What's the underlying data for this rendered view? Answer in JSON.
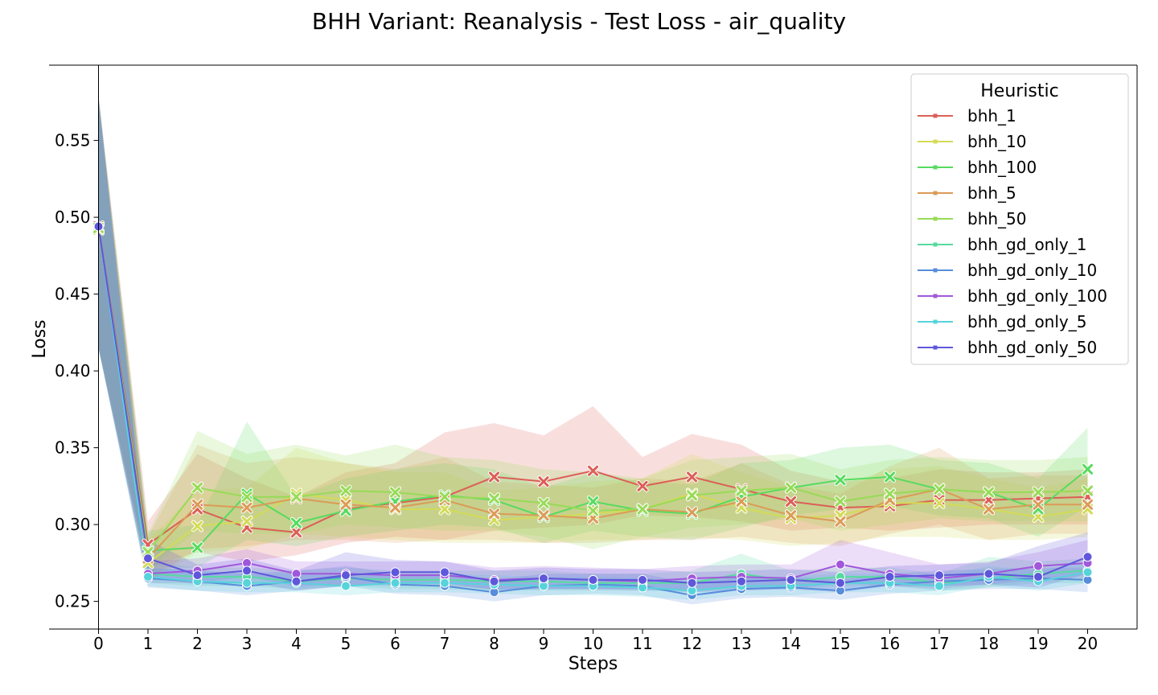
{
  "chart_data": {
    "type": "line",
    "title": "BHH Variant: Reanalysis - Test Loss - air_quality",
    "xlabel": "Steps",
    "ylabel": "Loss",
    "xlim": [
      -1,
      21
    ],
    "ylim": [
      0.232,
      0.599
    ],
    "x": [
      0,
      1,
      2,
      3,
      4,
      5,
      6,
      7,
      8,
      9,
      10,
      11,
      12,
      13,
      14,
      15,
      16,
      17,
      18,
      19,
      20
    ],
    "yticks": [
      "0.25",
      "0.30",
      "0.35",
      "0.40",
      "0.45",
      "0.50",
      "0.55"
    ],
    "ytick_values": [
      0.25,
      0.3,
      0.35,
      0.4,
      0.45,
      0.5,
      0.55
    ],
    "xticks": [
      "0",
      "1",
      "2",
      "3",
      "4",
      "5",
      "6",
      "7",
      "8",
      "9",
      "10",
      "11",
      "12",
      "13",
      "14",
      "15",
      "16",
      "17",
      "18",
      "19",
      "20"
    ],
    "legend_title": "Heuristic",
    "legend_position": "top-right",
    "grid": false,
    "series": [
      {
        "name": "bhh_1",
        "color": "#db5f57",
        "marker": "x",
        "values": [
          0.494,
          0.287,
          0.31,
          0.298,
          0.295,
          0.31,
          0.314,
          0.318,
          0.331,
          0.328,
          0.335,
          0.325,
          0.331,
          0.323,
          0.315,
          0.311,
          0.312,
          0.316,
          0.316,
          0.317,
          0.318
        ],
        "lower": [
          0.415,
          0.272,
          0.282,
          0.276,
          0.28,
          0.288,
          0.292,
          0.29,
          0.296,
          0.298,
          0.3,
          0.306,
          0.305,
          0.302,
          0.296,
          0.298,
          0.296,
          0.298,
          0.3,
          0.3,
          0.3
        ],
        "upper": [
          0.58,
          0.302,
          0.346,
          0.33,
          0.318,
          0.334,
          0.34,
          0.36,
          0.366,
          0.358,
          0.377,
          0.344,
          0.359,
          0.352,
          0.335,
          0.328,
          0.33,
          0.336,
          0.334,
          0.334,
          0.336
        ]
      },
      {
        "name": "bhh_10",
        "color": "#d3db57",
        "marker": "x",
        "values": [
          0.492,
          0.275,
          0.299,
          0.302,
          0.32,
          0.316,
          0.31,
          0.31,
          0.303,
          0.305,
          0.307,
          0.31,
          0.32,
          0.311,
          0.304,
          0.306,
          0.314,
          0.314,
          0.31,
          0.305,
          0.31
        ],
        "lower": [
          0.415,
          0.262,
          0.282,
          0.284,
          0.294,
          0.292,
          0.29,
          0.288,
          0.288,
          0.288,
          0.29,
          0.29,
          0.292,
          0.29,
          0.286,
          0.288,
          0.292,
          0.292,
          0.29,
          0.29,
          0.292
        ],
        "upper": [
          0.575,
          0.29,
          0.322,
          0.324,
          0.35,
          0.34,
          0.334,
          0.334,
          0.322,
          0.324,
          0.328,
          0.33,
          0.346,
          0.334,
          0.324,
          0.326,
          0.336,
          0.338,
          0.33,
          0.324,
          0.33
        ]
      },
      {
        "name": "bhh_100",
        "color": "#57db5f",
        "marker": "x",
        "values": [
          0.493,
          0.283,
          0.285,
          0.32,
          0.301,
          0.309,
          0.315,
          0.319,
          0.316,
          0.305,
          0.315,
          0.309,
          0.307,
          0.318,
          0.324,
          0.329,
          0.331,
          0.323,
          0.321,
          0.31,
          0.336
        ],
        "lower": [
          0.415,
          0.272,
          0.272,
          0.29,
          0.286,
          0.292,
          0.296,
          0.3,
          0.298,
          0.288,
          0.296,
          0.292,
          0.29,
          0.298,
          0.306,
          0.31,
          0.312,
          0.306,
          0.304,
          0.292,
          0.312
        ],
        "upper": [
          0.578,
          0.296,
          0.3,
          0.367,
          0.318,
          0.33,
          0.336,
          0.34,
          0.336,
          0.324,
          0.334,
          0.328,
          0.326,
          0.34,
          0.342,
          0.35,
          0.352,
          0.342,
          0.34,
          0.33,
          0.363
        ]
      },
      {
        "name": "bhh_5",
        "color": "#db9b57",
        "marker": "x",
        "values": [
          0.493,
          0.278,
          0.313,
          0.311,
          0.317,
          0.313,
          0.311,
          0.316,
          0.307,
          0.306,
          0.304,
          0.31,
          0.308,
          0.315,
          0.306,
          0.302,
          0.316,
          0.323,
          0.31,
          0.313,
          0.313
        ],
        "lower": [
          0.415,
          0.264,
          0.284,
          0.286,
          0.29,
          0.29,
          0.288,
          0.29,
          0.29,
          0.288,
          0.288,
          0.29,
          0.29,
          0.292,
          0.288,
          0.286,
          0.294,
          0.3,
          0.29,
          0.294,
          0.294
        ],
        "upper": [
          0.578,
          0.292,
          0.352,
          0.34,
          0.344,
          0.34,
          0.336,
          0.344,
          0.328,
          0.326,
          0.324,
          0.33,
          0.328,
          0.34,
          0.326,
          0.32,
          0.338,
          0.35,
          0.33,
          0.332,
          0.332
        ]
      },
      {
        "name": "bhh_50",
        "color": "#97db57",
        "marker": "x",
        "values": [
          0.493,
          0.282,
          0.324,
          0.318,
          0.318,
          0.322,
          0.321,
          0.318,
          0.317,
          0.314,
          0.309,
          0.31,
          0.319,
          0.322,
          0.324,
          0.315,
          0.32,
          0.323,
          0.321,
          0.321,
          0.322
        ],
        "lower": [
          0.415,
          0.27,
          0.296,
          0.294,
          0.294,
          0.3,
          0.298,
          0.296,
          0.296,
          0.292,
          0.284,
          0.292,
          0.298,
          0.3,
          0.304,
          0.296,
          0.3,
          0.304,
          0.302,
          0.302,
          0.302
        ],
        "upper": [
          0.578,
          0.294,
          0.361,
          0.346,
          0.352,
          0.345,
          0.352,
          0.344,
          0.342,
          0.336,
          0.334,
          0.33,
          0.342,
          0.344,
          0.346,
          0.336,
          0.342,
          0.344,
          0.342,
          0.342,
          0.344
        ]
      },
      {
        "name": "bhh_gd_only_1",
        "color": "#57db9f",
        "marker": "o",
        "values": [
          0.494,
          0.268,
          0.266,
          0.266,
          0.263,
          0.265,
          0.264,
          0.264,
          0.263,
          0.263,
          0.262,
          0.262,
          0.262,
          0.268,
          0.263,
          0.266,
          0.266,
          0.262,
          0.265,
          0.268,
          0.27
        ],
        "lower": [
          0.415,
          0.262,
          0.26,
          0.26,
          0.258,
          0.26,
          0.258,
          0.258,
          0.257,
          0.257,
          0.257,
          0.257,
          0.256,
          0.258,
          0.258,
          0.26,
          0.26,
          0.257,
          0.259,
          0.262,
          0.262
        ],
        "upper": [
          0.578,
          0.276,
          0.272,
          0.272,
          0.27,
          0.272,
          0.27,
          0.27,
          0.27,
          0.27,
          0.268,
          0.268,
          0.27,
          0.281,
          0.27,
          0.272,
          0.272,
          0.268,
          0.279,
          0.276,
          0.278
        ]
      },
      {
        "name": "bhh_gd_only_10",
        "color": "#578ddb",
        "marker": "o",
        "values": [
          0.494,
          0.265,
          0.263,
          0.26,
          0.263,
          0.266,
          0.261,
          0.26,
          0.256,
          0.26,
          0.261,
          0.26,
          0.254,
          0.258,
          0.259,
          0.257,
          0.261,
          0.263,
          0.264,
          0.265,
          0.264
        ],
        "lower": [
          0.415,
          0.259,
          0.257,
          0.254,
          0.257,
          0.26,
          0.255,
          0.254,
          0.25,
          0.254,
          0.255,
          0.254,
          0.248,
          0.252,
          0.253,
          0.251,
          0.255,
          0.257,
          0.258,
          0.258,
          0.256
        ],
        "upper": [
          0.578,
          0.272,
          0.27,
          0.268,
          0.27,
          0.273,
          0.268,
          0.268,
          0.264,
          0.268,
          0.268,
          0.268,
          0.262,
          0.266,
          0.266,
          0.264,
          0.268,
          0.27,
          0.271,
          0.272,
          0.272
        ]
      },
      {
        "name": "bhh_gd_only_100",
        "color": "#a157db",
        "marker": "o",
        "values": [
          0.494,
          0.268,
          0.27,
          0.275,
          0.268,
          0.268,
          0.267,
          0.267,
          0.264,
          0.265,
          0.264,
          0.263,
          0.265,
          0.266,
          0.265,
          0.274,
          0.268,
          0.265,
          0.268,
          0.273,
          0.275
        ],
        "lower": [
          0.415,
          0.262,
          0.262,
          0.266,
          0.26,
          0.261,
          0.26,
          0.26,
          0.258,
          0.258,
          0.258,
          0.257,
          0.258,
          0.259,
          0.258,
          0.262,
          0.26,
          0.258,
          0.261,
          0.264,
          0.264
        ],
        "upper": [
          0.578,
          0.276,
          0.278,
          0.284,
          0.276,
          0.276,
          0.276,
          0.276,
          0.272,
          0.273,
          0.272,
          0.271,
          0.273,
          0.274,
          0.274,
          0.29,
          0.282,
          0.274,
          0.276,
          0.282,
          0.29
        ]
      },
      {
        "name": "bhh_gd_only_5",
        "color": "#57d3db",
        "marker": "o",
        "values": [
          0.494,
          0.266,
          0.263,
          0.262,
          0.262,
          0.26,
          0.262,
          0.262,
          0.261,
          0.26,
          0.26,
          0.259,
          0.257,
          0.26,
          0.26,
          0.262,
          0.262,
          0.26,
          0.266,
          0.263,
          0.269
        ],
        "lower": [
          0.415,
          0.26,
          0.257,
          0.256,
          0.256,
          0.254,
          0.256,
          0.256,
          0.255,
          0.254,
          0.254,
          0.253,
          0.251,
          0.254,
          0.254,
          0.256,
          0.256,
          0.254,
          0.26,
          0.257,
          0.262
        ],
        "upper": [
          0.578,
          0.272,
          0.27,
          0.268,
          0.268,
          0.266,
          0.268,
          0.268,
          0.267,
          0.266,
          0.266,
          0.265,
          0.264,
          0.266,
          0.266,
          0.268,
          0.268,
          0.266,
          0.273,
          0.27,
          0.276
        ]
      },
      {
        "name": "bhh_gd_only_50",
        "color": "#5f57db",
        "marker": "o",
        "values": [
          0.494,
          0.278,
          0.267,
          0.27,
          0.263,
          0.267,
          0.269,
          0.269,
          0.263,
          0.265,
          0.264,
          0.264,
          0.262,
          0.263,
          0.264,
          0.262,
          0.266,
          0.267,
          0.268,
          0.266,
          0.279
        ],
        "lower": [
          0.415,
          0.266,
          0.261,
          0.263,
          0.257,
          0.26,
          0.262,
          0.262,
          0.257,
          0.258,
          0.258,
          0.258,
          0.256,
          0.257,
          0.258,
          0.256,
          0.26,
          0.26,
          0.261,
          0.259,
          0.268
        ],
        "upper": [
          0.578,
          0.29,
          0.274,
          0.278,
          0.27,
          0.282,
          0.277,
          0.276,
          0.27,
          0.272,
          0.271,
          0.271,
          0.269,
          0.27,
          0.271,
          0.269,
          0.273,
          0.274,
          0.275,
          0.286,
          0.295
        ]
      }
    ]
  }
}
